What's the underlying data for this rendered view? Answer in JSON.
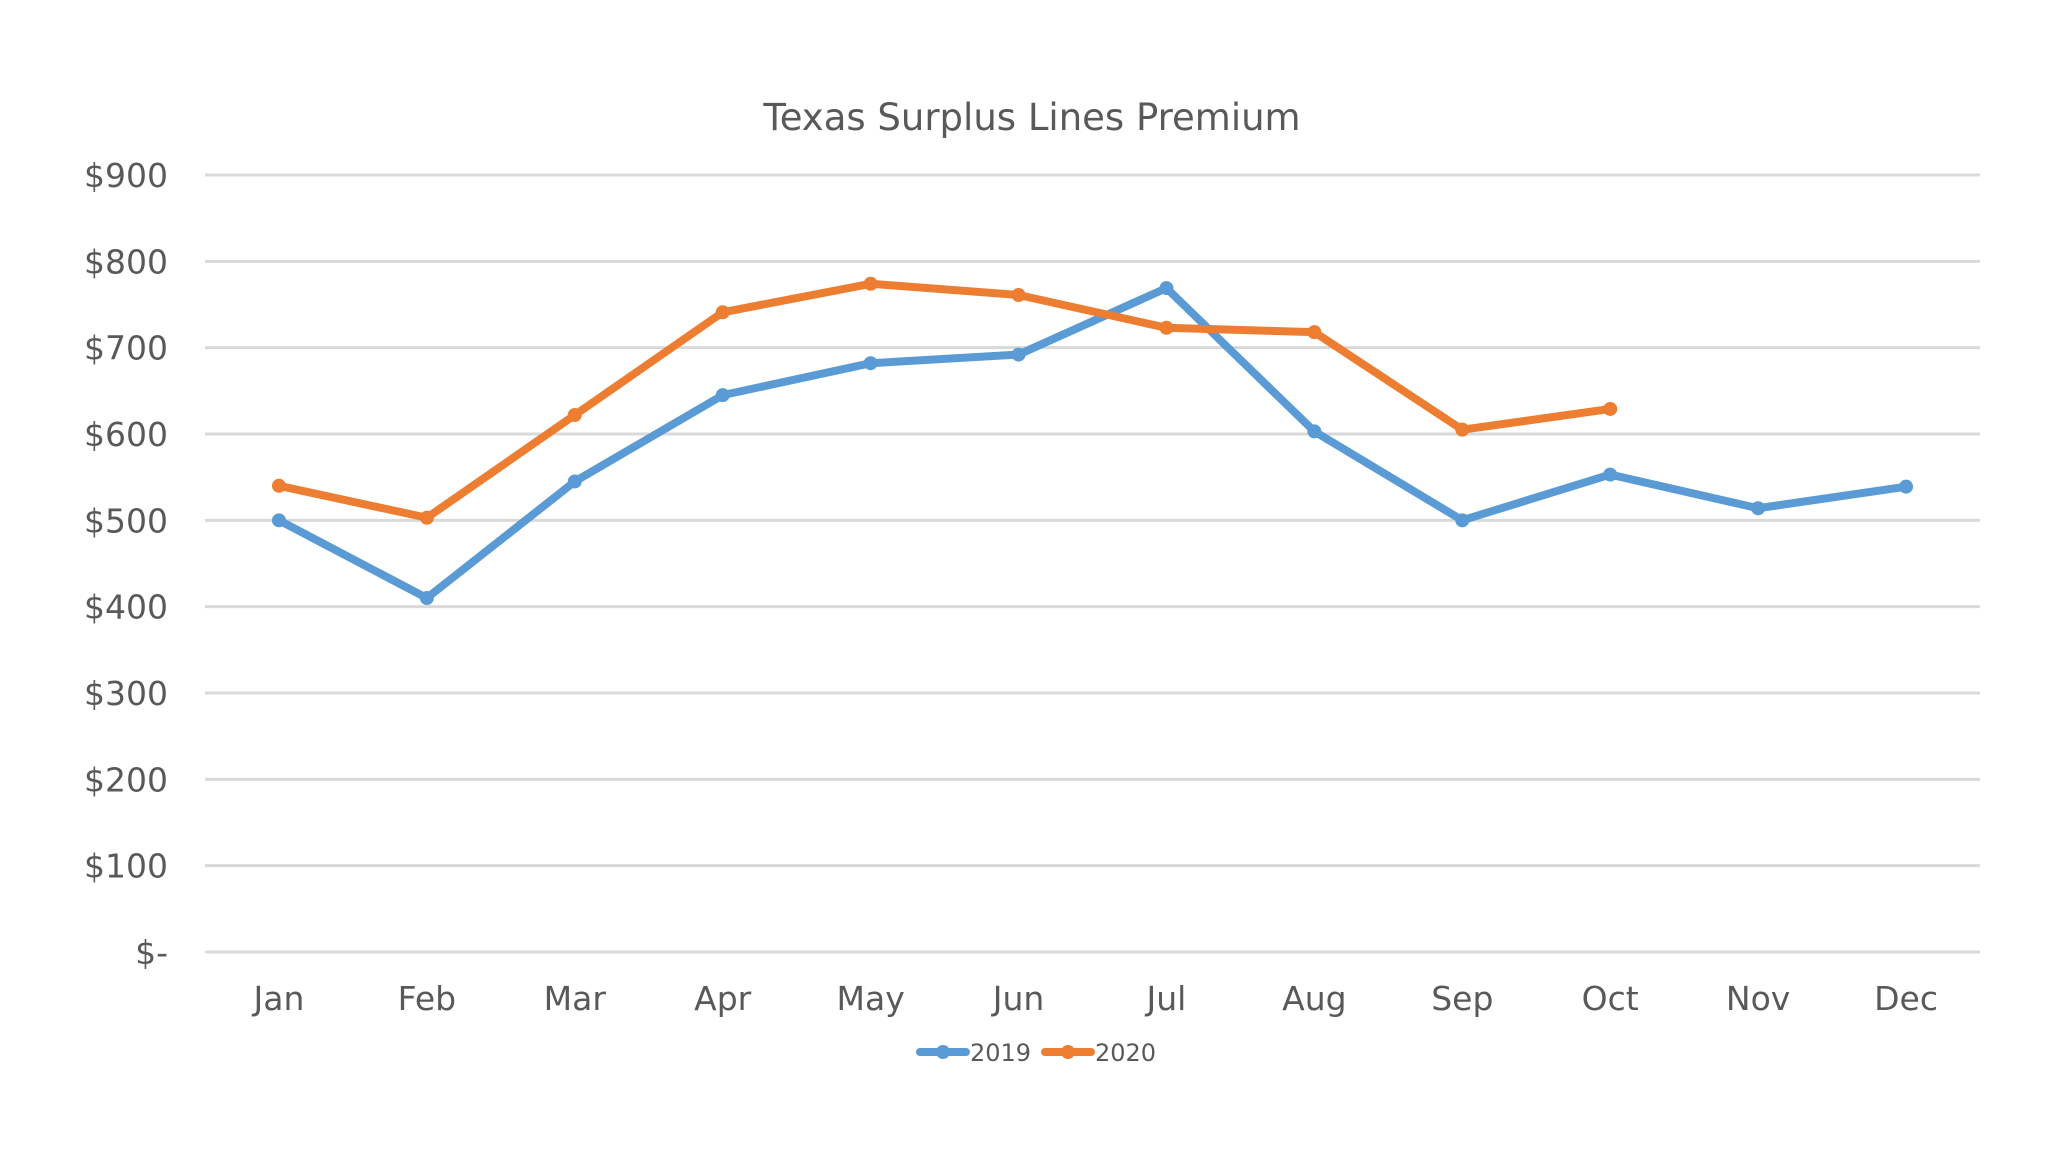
{
  "chart_data": {
    "type": "line",
    "title": "Texas Surplus Lines Premium",
    "xlabel": "",
    "ylabel": "",
    "categories": [
      "Jan",
      "Feb",
      "Mar",
      "Apr",
      "May",
      "Jun",
      "Jul",
      "Aug",
      "Sep",
      "Oct",
      "Nov",
      "Dec"
    ],
    "ylim": [
      0,
      900
    ],
    "yticks": [
      0,
      100,
      200,
      300,
      400,
      500,
      600,
      700,
      800,
      900
    ],
    "ytick_labels": [
      "$-",
      "$100",
      "$200",
      "$300",
      "$400",
      "$500",
      "$600",
      "$700",
      "$800",
      "$900"
    ],
    "grid": true,
    "legend_position": "bottom",
    "series": [
      {
        "name": "2019",
        "color": "#5B9BD5",
        "values": [
          500,
          410,
          545,
          645,
          682,
          692,
          769,
          603,
          500,
          553,
          514,
          539
        ]
      },
      {
        "name": "2020",
        "color": "#ED7D31",
        "values": [
          540,
          503,
          622,
          741,
          774,
          761,
          723,
          718,
          605,
          629,
          null,
          null
        ]
      }
    ]
  }
}
